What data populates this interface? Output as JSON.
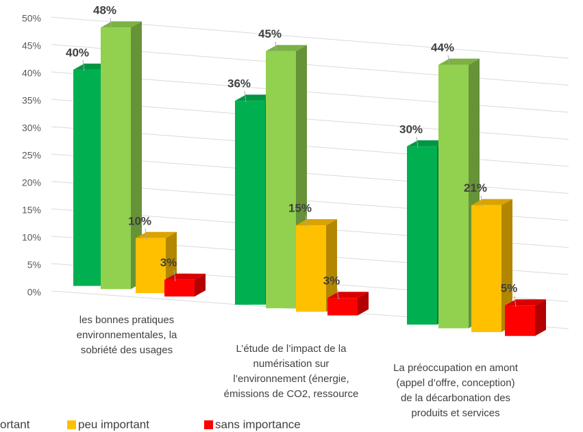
{
  "chart_data": {
    "type": "bar3d",
    "categories": [
      [
        "les bonnes pratiques",
        "environnementales, la",
        "sobriété des usages"
      ],
      [
        "L’étude de l’impact de la",
        "numérisation sur",
        "l’environnement (énergie,",
        "émissions de CO2, ressource"
      ],
      [
        "La préoccupation en amont",
        "(appel d’offre, conception)",
        "de la décarbonation des",
        "produits et services"
      ]
    ],
    "series": [
      {
        "color": "#00b050",
        "values": [
          40,
          36,
          30
        ],
        "value_labels": [
          "40%",
          "36%",
          "30%"
        ]
      },
      {
        "name": "ortant",
        "color": "#92d050",
        "values": [
          48,
          45,
          44
        ],
        "value_labels": [
          "48%",
          "45%",
          "44%"
        ]
      },
      {
        "name": "peu important",
        "color": "#ffc000",
        "values": [
          10,
          15,
          21
        ],
        "value_labels": [
          "10%",
          "15%",
          "21%"
        ]
      },
      {
        "name": "sans importance",
        "color": "#ff0000",
        "values": [
          3,
          3,
          5
        ],
        "value_labels": [
          "3%",
          "3%",
          "5%"
        ]
      }
    ],
    "ylim": [
      0,
      50
    ],
    "yticks": [
      {
        "value": 0,
        "label": "0%"
      },
      {
        "value": 5,
        "label": "5%"
      },
      {
        "value": 10,
        "label": "10%"
      },
      {
        "value": 15,
        "label": "15%"
      },
      {
        "value": 20,
        "label": "20%"
      },
      {
        "value": 25,
        "label": "25%"
      },
      {
        "value": 30,
        "label": "30%"
      },
      {
        "value": 35,
        "label": "35%"
      },
      {
        "value": 40,
        "label": "40%"
      },
      {
        "value": 45,
        "label": "45%"
      },
      {
        "value": 50,
        "label": "50%"
      }
    ],
    "grid": true
  }
}
